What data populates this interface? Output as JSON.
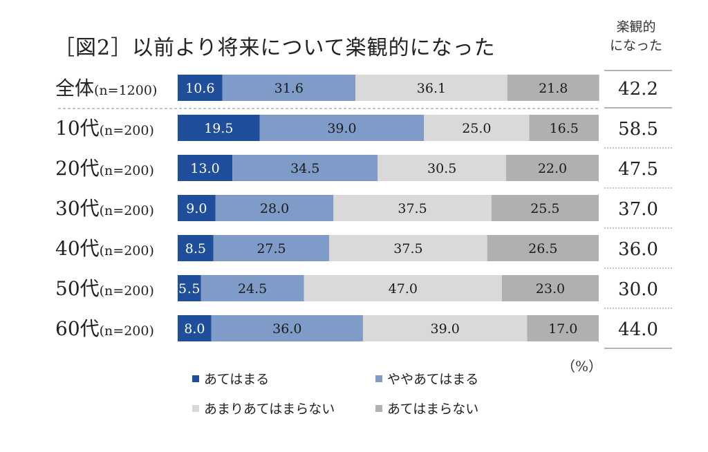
{
  "title": "［図2］以前より将来について楽観的になった",
  "side_header": [
    "楽観的",
    "になった"
  ],
  "unit": "（%）",
  "colors": {
    "series": [
      "#1f4e9b",
      "#7f9cc9",
      "#d9d9d9",
      "#b0b0b0"
    ],
    "segment_text": [
      "#ffffff",
      "#1a1a1a",
      "#1a1a1a",
      "#1a1a1a"
    ]
  },
  "chart_data": {
    "type": "bar",
    "orientation": "horizontal",
    "stacked": true,
    "categories": [
      {
        "main": "全体",
        "sub": "(n=1200)"
      },
      {
        "main": "10代",
        "sub": "(n=200)"
      },
      {
        "main": "20代",
        "sub": "(n=200)"
      },
      {
        "main": "30代",
        "sub": "(n=200)"
      },
      {
        "main": "40代",
        "sub": "(n=200)"
      },
      {
        "main": "50代",
        "sub": "(n=200)"
      },
      {
        "main": "60代",
        "sub": "(n=200)"
      }
    ],
    "series": [
      {
        "name": "あてはまる",
        "values": [
          10.6,
          19.5,
          13.0,
          9.0,
          8.5,
          5.5,
          8.0
        ],
        "labels": [
          "10.6",
          "19.5",
          "13.0",
          "9.0",
          "8.5",
          "5.5",
          "8.0"
        ]
      },
      {
        "name": "ややあてはまる",
        "values": [
          31.6,
          39.0,
          34.5,
          28.0,
          27.5,
          24.5,
          36.0
        ],
        "labels": [
          "31.6",
          "39.0",
          "34.5",
          "28.0",
          "27.5",
          "24.5",
          "36.0"
        ]
      },
      {
        "name": "あまりあてはまらない",
        "values": [
          36.1,
          25.0,
          30.5,
          37.5,
          37.5,
          47.0,
          39.0
        ],
        "labels": [
          "36.1",
          "25.0",
          "30.5",
          "37.5",
          "37.5",
          "47.0",
          "39.0"
        ]
      },
      {
        "name": "あてはまらない",
        "values": [
          21.8,
          16.5,
          22.0,
          25.5,
          26.5,
          23.0,
          17.0
        ],
        "labels": [
          "21.8",
          "16.5",
          "22.0",
          "25.5",
          "26.5",
          "23.0",
          "17.0"
        ]
      }
    ],
    "totals": {
      "values": [
        42.2,
        58.5,
        47.5,
        37.0,
        36.0,
        30.0,
        44.0
      ],
      "labels": [
        "42.2",
        "58.5",
        "47.5",
        "37.0",
        "36.0",
        "30.0",
        "44.0"
      ]
    },
    "xlim": [
      0,
      100
    ],
    "legend": "bottom"
  }
}
